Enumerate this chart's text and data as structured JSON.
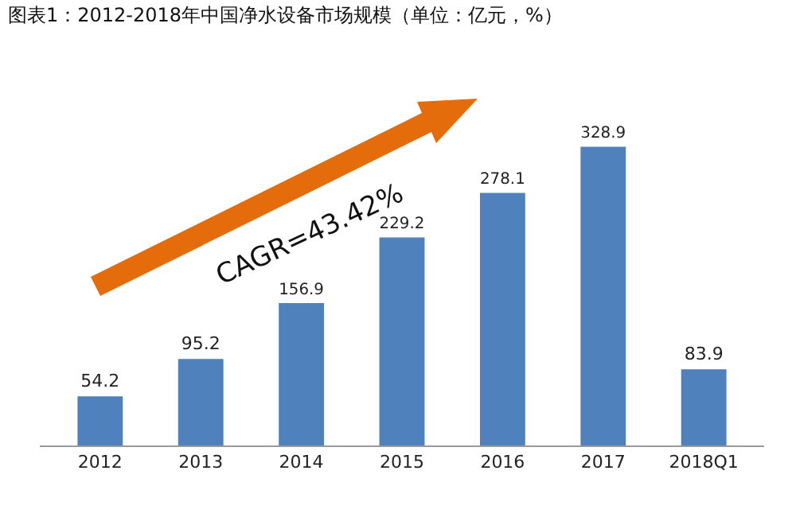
{
  "chart_data": {
    "type": "bar",
    "title": "图表1：2012-2018年中国净水设备市场规模（单位：亿元，%）",
    "categories": [
      "2012",
      "2013",
      "2014",
      "2015",
      "2016",
      "2017",
      "2018Q1"
    ],
    "values": [
      54.2,
      95.2,
      156.9,
      229.2,
      278.1,
      328.9,
      83.9
    ],
    "color": "#4f81bd",
    "data_labels": true,
    "annotations": [
      "CAGR=43.42%"
    ]
  }
}
